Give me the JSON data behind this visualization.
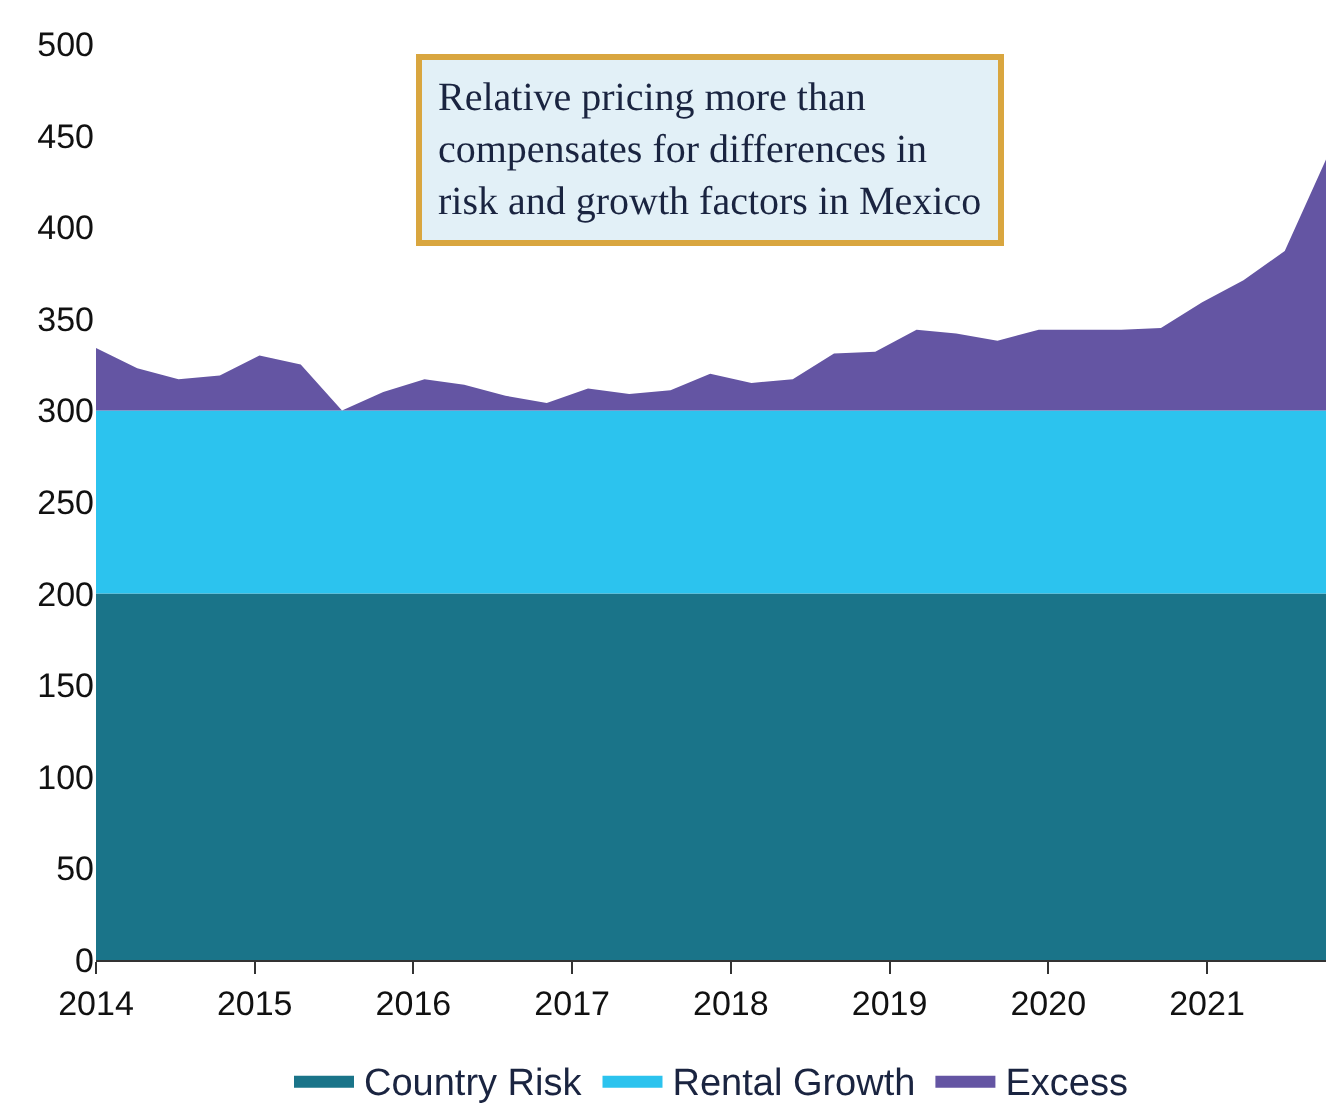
{
  "chart_data": {
    "type": "area",
    "stacked": true,
    "x": [
      2014,
      2014.26,
      2014.52,
      2014.78,
      2015.03,
      2015.29,
      2015.55,
      2015.81,
      2016.07,
      2016.32,
      2016.58,
      2016.84,
      2017.1,
      2017.36,
      2017.62,
      2017.87,
      2018.13,
      2018.39,
      2018.65,
      2018.91,
      2019.17,
      2019.42,
      2019.68,
      2019.94,
      2020.2,
      2020.46,
      2020.71,
      2020.97,
      2021.23,
      2021.49,
      2021.75
    ],
    "series": [
      {
        "name": "Country Risk",
        "color": "#1a7489",
        "values": [
          200,
          200,
          200,
          200,
          200,
          200,
          200,
          200,
          200,
          200,
          200,
          200,
          200,
          200,
          200,
          200,
          200,
          200,
          200,
          200,
          200,
          200,
          200,
          200,
          200,
          200,
          200,
          200,
          200,
          200,
          200
        ]
      },
      {
        "name": "Rental Growth",
        "color": "#2cc3ee",
        "values": [
          100,
          100,
          100,
          100,
          100,
          100,
          100,
          100,
          100,
          100,
          100,
          100,
          100,
          100,
          100,
          100,
          100,
          100,
          100,
          100,
          100,
          100,
          100,
          100,
          100,
          100,
          100,
          100,
          100,
          100,
          100
        ]
      },
      {
        "name": "Excess",
        "color": "#6455a3",
        "values": [
          34,
          23,
          17,
          19,
          30,
          25,
          0,
          10,
          17,
          14,
          8,
          4,
          12,
          9,
          11,
          20,
          15,
          17,
          31,
          32,
          44,
          42,
          38,
          44,
          44,
          44,
          45,
          59,
          71,
          87,
          137
        ]
      }
    ],
    "annotations": [
      "Relative pricing more than\ncompensates for differences in\nrisk and growth factors in Mexico"
    ],
    "xlim": [
      2014,
      2021.75
    ],
    "xticks": [
      2014,
      2015,
      2016,
      2017,
      2018,
      2019,
      2020,
      2021
    ],
    "ylim": [
      0,
      500
    ],
    "yticks": [
      0,
      50,
      100,
      150,
      200,
      250,
      300,
      350,
      400,
      450,
      500
    ],
    "legend": "bottom"
  }
}
